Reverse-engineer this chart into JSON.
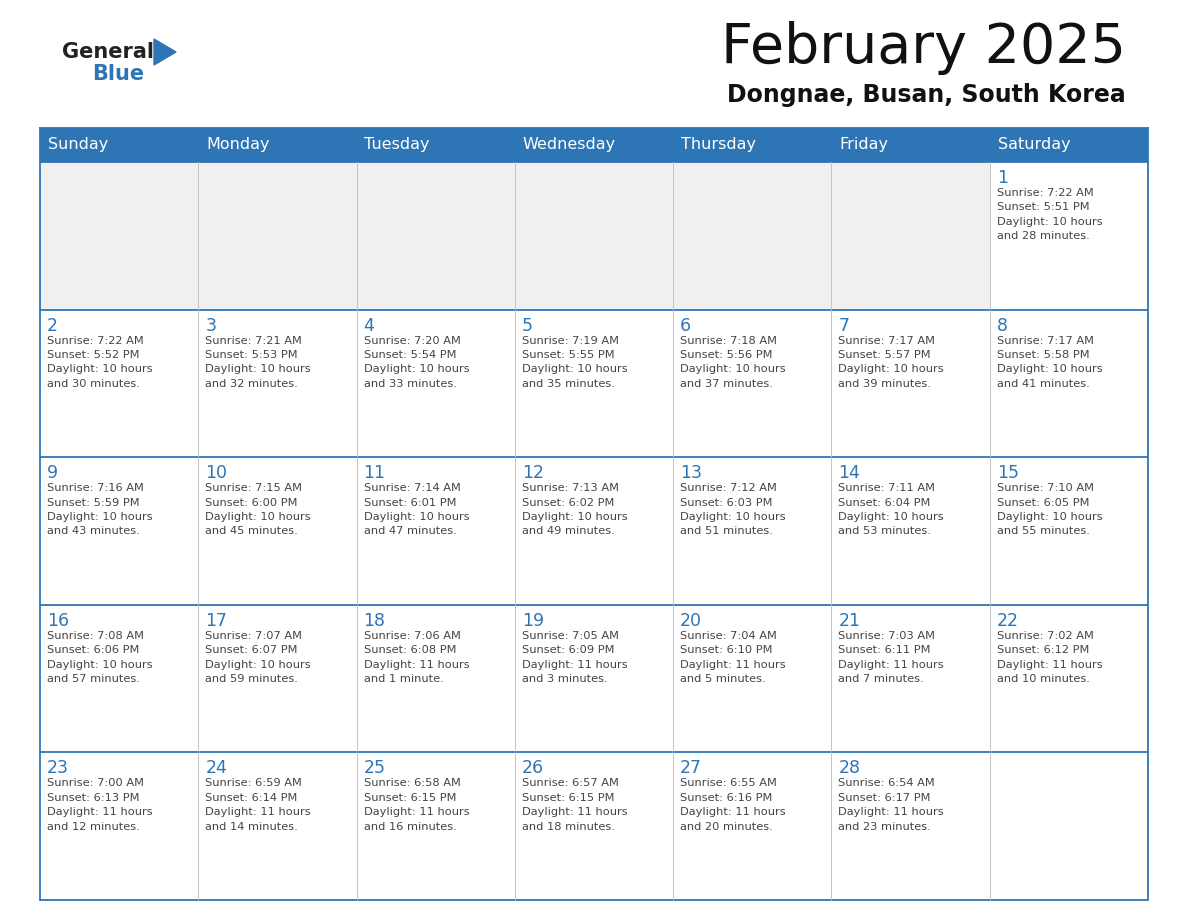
{
  "title": "February 2025",
  "subtitle": "Dongnae, Busan, South Korea",
  "header_bg": "#2E75B6",
  "header_text_color": "#FFFFFF",
  "cell_bg_white": "#FFFFFF",
  "cell_bg_light": "#F0F0F0",
  "day_number_color": "#2E75B6",
  "text_color": "#444444",
  "border_color": "#2E75B6",
  "grid_color": "#BBBBBB",
  "days_of_week": [
    "Sunday",
    "Monday",
    "Tuesday",
    "Wednesday",
    "Thursday",
    "Friday",
    "Saturday"
  ],
  "calendar": [
    [
      {
        "day": null,
        "info": null
      },
      {
        "day": null,
        "info": null
      },
      {
        "day": null,
        "info": null
      },
      {
        "day": null,
        "info": null
      },
      {
        "day": null,
        "info": null
      },
      {
        "day": null,
        "info": null
      },
      {
        "day": 1,
        "info": "Sunrise: 7:22 AM\nSunset: 5:51 PM\nDaylight: 10 hours\nand 28 minutes."
      }
    ],
    [
      {
        "day": 2,
        "info": "Sunrise: 7:22 AM\nSunset: 5:52 PM\nDaylight: 10 hours\nand 30 minutes."
      },
      {
        "day": 3,
        "info": "Sunrise: 7:21 AM\nSunset: 5:53 PM\nDaylight: 10 hours\nand 32 minutes."
      },
      {
        "day": 4,
        "info": "Sunrise: 7:20 AM\nSunset: 5:54 PM\nDaylight: 10 hours\nand 33 minutes."
      },
      {
        "day": 5,
        "info": "Sunrise: 7:19 AM\nSunset: 5:55 PM\nDaylight: 10 hours\nand 35 minutes."
      },
      {
        "day": 6,
        "info": "Sunrise: 7:18 AM\nSunset: 5:56 PM\nDaylight: 10 hours\nand 37 minutes."
      },
      {
        "day": 7,
        "info": "Sunrise: 7:17 AM\nSunset: 5:57 PM\nDaylight: 10 hours\nand 39 minutes."
      },
      {
        "day": 8,
        "info": "Sunrise: 7:17 AM\nSunset: 5:58 PM\nDaylight: 10 hours\nand 41 minutes."
      }
    ],
    [
      {
        "day": 9,
        "info": "Sunrise: 7:16 AM\nSunset: 5:59 PM\nDaylight: 10 hours\nand 43 minutes."
      },
      {
        "day": 10,
        "info": "Sunrise: 7:15 AM\nSunset: 6:00 PM\nDaylight: 10 hours\nand 45 minutes."
      },
      {
        "day": 11,
        "info": "Sunrise: 7:14 AM\nSunset: 6:01 PM\nDaylight: 10 hours\nand 47 minutes."
      },
      {
        "day": 12,
        "info": "Sunrise: 7:13 AM\nSunset: 6:02 PM\nDaylight: 10 hours\nand 49 minutes."
      },
      {
        "day": 13,
        "info": "Sunrise: 7:12 AM\nSunset: 6:03 PM\nDaylight: 10 hours\nand 51 minutes."
      },
      {
        "day": 14,
        "info": "Sunrise: 7:11 AM\nSunset: 6:04 PM\nDaylight: 10 hours\nand 53 minutes."
      },
      {
        "day": 15,
        "info": "Sunrise: 7:10 AM\nSunset: 6:05 PM\nDaylight: 10 hours\nand 55 minutes."
      }
    ],
    [
      {
        "day": 16,
        "info": "Sunrise: 7:08 AM\nSunset: 6:06 PM\nDaylight: 10 hours\nand 57 minutes."
      },
      {
        "day": 17,
        "info": "Sunrise: 7:07 AM\nSunset: 6:07 PM\nDaylight: 10 hours\nand 59 minutes."
      },
      {
        "day": 18,
        "info": "Sunrise: 7:06 AM\nSunset: 6:08 PM\nDaylight: 11 hours\nand 1 minute."
      },
      {
        "day": 19,
        "info": "Sunrise: 7:05 AM\nSunset: 6:09 PM\nDaylight: 11 hours\nand 3 minutes."
      },
      {
        "day": 20,
        "info": "Sunrise: 7:04 AM\nSunset: 6:10 PM\nDaylight: 11 hours\nand 5 minutes."
      },
      {
        "day": 21,
        "info": "Sunrise: 7:03 AM\nSunset: 6:11 PM\nDaylight: 11 hours\nand 7 minutes."
      },
      {
        "day": 22,
        "info": "Sunrise: 7:02 AM\nSunset: 6:12 PM\nDaylight: 11 hours\nand 10 minutes."
      }
    ],
    [
      {
        "day": 23,
        "info": "Sunrise: 7:00 AM\nSunset: 6:13 PM\nDaylight: 11 hours\nand 12 minutes."
      },
      {
        "day": 24,
        "info": "Sunrise: 6:59 AM\nSunset: 6:14 PM\nDaylight: 11 hours\nand 14 minutes."
      },
      {
        "day": 25,
        "info": "Sunrise: 6:58 AM\nSunset: 6:15 PM\nDaylight: 11 hours\nand 16 minutes."
      },
      {
        "day": 26,
        "info": "Sunrise: 6:57 AM\nSunset: 6:15 PM\nDaylight: 11 hours\nand 18 minutes."
      },
      {
        "day": 27,
        "info": "Sunrise: 6:55 AM\nSunset: 6:16 PM\nDaylight: 11 hours\nand 20 minutes."
      },
      {
        "day": 28,
        "info": "Sunrise: 6:54 AM\nSunset: 6:17 PM\nDaylight: 11 hours\nand 23 minutes."
      },
      {
        "day": null,
        "info": null
      }
    ]
  ],
  "fig_width": 11.88,
  "fig_height": 9.18,
  "dpi": 100
}
